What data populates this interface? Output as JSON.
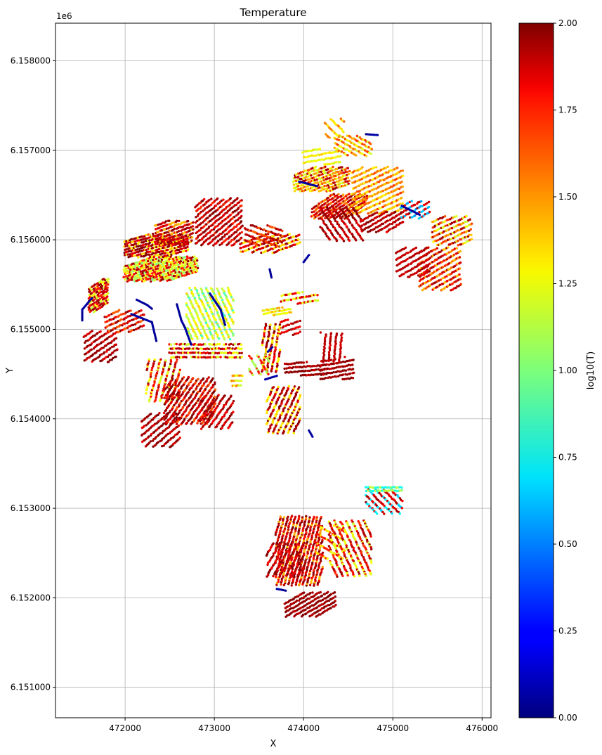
{
  "chart_data": {
    "type": "scatter",
    "title": "Temperature",
    "xlabel": "X",
    "ylabel": "Y",
    "y_offset_label": "1e6",
    "xlim": [
      471220,
      476100
    ],
    "ylim": [
      6150660,
      6158420
    ],
    "x_ticks": [
      472000,
      473000,
      474000,
      475000,
      476000
    ],
    "x_tick_labels": [
      "472000",
      "473000",
      "474000",
      "475000",
      "476000"
    ],
    "y_ticks": [
      6151000,
      6152000,
      6153000,
      6154000,
      6155000,
      6156000,
      6157000,
      6158000
    ],
    "y_tick_labels": [
      "6.151000",
      "6.152000",
      "6.153000",
      "6.154000",
      "6.155000",
      "6.156000",
      "6.157000",
      "6.158000"
    ],
    "grid": true,
    "colormap": "jet",
    "colorbar": {
      "label": "log10(T)",
      "range": [
        0.0,
        2.0
      ],
      "ticks": [
        0.0,
        0.25,
        0.5,
        0.75,
        1.0,
        1.25,
        1.5,
        1.75,
        2.0
      ],
      "tick_labels": [
        "0.00",
        "0.25",
        "0.50",
        "0.75",
        "1.00",
        "1.25",
        "1.50",
        "1.75",
        "2.00"
      ]
    },
    "point_groups": [
      {
        "x": [
          471600,
          471800
        ],
        "y": [
          6155200,
          6155550
        ],
        "rot": -35,
        "lines": 10,
        "c": [
          1.7,
          1.95,
          1.2,
          1.85
        ]
      },
      {
        "x": [
          471550,
          471900
        ],
        "y": [
          6154650,
          6154970
        ],
        "rot": -35,
        "lines": 8,
        "c": [
          1.9,
          1.8,
          2.0
        ]
      },
      {
        "x": [
          471780,
          472200
        ],
        "y": [
          6154980,
          6155200
        ],
        "rot": -25,
        "lines": 6,
        "c": [
          1.8,
          1.95,
          1.6
        ]
      },
      {
        "x": [
          472000,
          472800
        ],
        "y": [
          6155550,
          6155800
        ],
        "rot": -18,
        "lines": 12,
        "c": [
          1.2,
          1.05,
          1.7,
          1.3,
          1.9
        ]
      },
      {
        "x": [
          472000,
          472700
        ],
        "y": [
          6155820,
          6156050
        ],
        "rot": -15,
        "lines": 10,
        "c": [
          1.9,
          1.3,
          1.8,
          2.0
        ]
      },
      {
        "x": [
          472350,
          472750
        ],
        "y": [
          6155950,
          6156200
        ],
        "rot": -20,
        "lines": 9,
        "c": [
          1.95,
          1.8,
          1.4,
          1.9
        ]
      },
      {
        "x": [
          472800,
          473300
        ],
        "y": [
          6155950,
          6156450
        ],
        "rot": -40,
        "lines": 14,
        "c": [
          1.9,
          1.85,
          2.0,
          1.7
        ]
      },
      {
        "x": [
          473300,
          473950
        ],
        "y": [
          6155870,
          6156050
        ],
        "rot": -20,
        "lines": 6,
        "c": [
          1.8,
          1.3,
          1.9
        ]
      },
      {
        "x": [
          473350,
          473750
        ],
        "y": [
          6155950,
          6156150
        ],
        "rot": 20,
        "lines": 5,
        "c": [
          1.6,
          1.9
        ]
      },
      {
        "x": [
          472700,
          473200
        ],
        "y": [
          6154900,
          6155450
        ],
        "rot": 65,
        "lines": 12,
        "c": [
          1.1,
          1.3,
          0.9,
          1.2
        ]
      },
      {
        "x": [
          472500,
          473300
        ],
        "y": [
          6154700,
          6154820
        ],
        "rot": 0,
        "lines": 4,
        "c": [
          1.9,
          1.2,
          1.8
        ]
      },
      {
        "x": [
          472250,
          472600
        ],
        "y": [
          6154200,
          6154650
        ],
        "rot": -75,
        "lines": 8,
        "c": [
          1.7,
          1.2,
          1.9
        ]
      },
      {
        "x": [
          472450,
          473000
        ],
        "y": [
          6153950,
          6154450
        ],
        "rot": -55,
        "lines": 14,
        "c": [
          1.9,
          1.85,
          2.0,
          1.6
        ]
      },
      {
        "x": [
          472200,
          472600
        ],
        "y": [
          6153700,
          6154050
        ],
        "rot": -40,
        "lines": 8,
        "c": [
          1.9,
          1.8,
          2.0
        ]
      },
      {
        "x": [
          472850,
          473200
        ],
        "y": [
          6153900,
          6154250
        ],
        "rot": -55,
        "lines": 8,
        "c": [
          1.95,
          1.8
        ]
      },
      {
        "x": [
          473200,
          473300
        ],
        "y": [
          6154380,
          6154470
        ],
        "rot": 0,
        "lines": 3,
        "c": [
          1.2,
          1.5
        ]
      },
      {
        "x": [
          473550,
          473850
        ],
        "y": [
          6155170,
          6155230
        ],
        "rot": -10,
        "lines": 3,
        "c": [
          1.2,
          1.4
        ]
      },
      {
        "x": [
          473750,
          474150
        ],
        "y": [
          6155300,
          6155400
        ],
        "rot": -10,
        "lines": 3,
        "c": [
          1.2,
          1.8
        ]
      },
      {
        "x": [
          473750,
          473950
        ],
        "y": [
          6154950,
          6155100
        ],
        "rot": -20,
        "lines": 4,
        "c": [
          1.8,
          1.9
        ]
      },
      {
        "x": [
          473550,
          473720
        ],
        "y": [
          6154530,
          6155050
        ],
        "rot": -80,
        "lines": 5,
        "c": [
          1.8,
          1.95,
          1.3
        ]
      },
      {
        "x": [
          473400,
          473600
        ],
        "y": [
          6154500,
          6154700
        ],
        "rot": 60,
        "lines": 4,
        "c": [
          1.7,
          1.1
        ]
      },
      {
        "x": [
          473800,
          474250
        ],
        "y": [
          6154500,
          6154620
        ],
        "rot": -5,
        "lines": 4,
        "c": [
          1.9,
          2.0
        ]
      },
      {
        "x": [
          474200,
          474550
        ],
        "y": [
          6154450,
          6154650
        ],
        "rot": -10,
        "lines": 6,
        "c": [
          1.9,
          1.95,
          2.0
        ]
      },
      {
        "x": [
          474200,
          474450
        ],
        "y": [
          6154650,
          6154950
        ],
        "rot": -85,
        "lines": 6,
        "c": [
          1.9,
          1.85
        ]
      },
      {
        "x": [
          473600,
          473950
        ],
        "y": [
          6153850,
          6154350
        ],
        "rot": -65,
        "lines": 9,
        "c": [
          1.85,
          1.95,
          1.3
        ]
      },
      {
        "x": [
          473900,
          474500
        ],
        "y": [
          6156550,
          6156800
        ],
        "rot": -20,
        "lines": 10,
        "c": [
          1.2,
          1.4,
          1.9,
          1.6
        ]
      },
      {
        "x": [
          474100,
          474700
        ],
        "y": [
          6156250,
          6156500
        ],
        "rot": -35,
        "lines": 10,
        "c": [
          1.9,
          1.8,
          1.5
        ]
      },
      {
        "x": [
          474550,
          475100
        ],
        "y": [
          6156300,
          6156800
        ],
        "rot": -25,
        "lines": 12,
        "c": [
          1.5,
          1.4,
          1.3,
          1.6
        ]
      },
      {
        "x": [
          474000,
          474400
        ],
        "y": [
          6156850,
          6157000
        ],
        "rot": -10,
        "lines": 4,
        "c": [
          1.2,
          1.3
        ]
      },
      {
        "x": [
          474350,
          474750
        ],
        "y": [
          6156950,
          6157150
        ],
        "rot": 30,
        "lines": 6,
        "c": [
          1.4,
          1.6,
          1.2
        ]
      },
      {
        "x": [
          474250,
          474450
        ],
        "y": [
          6157150,
          6157350
        ],
        "rot": 45,
        "lines": 4,
        "c": [
          1.5,
          1.3
        ]
      },
      {
        "x": [
          474200,
          474650
        ],
        "y": [
          6156000,
          6156350
        ],
        "rot": 55,
        "lines": 8,
        "c": [
          1.9,
          1.8,
          2.0
        ]
      },
      {
        "x": [
          474650,
          475100
        ],
        "y": [
          6156100,
          6156300
        ],
        "rot": -30,
        "lines": 6,
        "c": [
          1.85,
          1.95
        ]
      },
      {
        "x": [
          475100,
          475400
        ],
        "y": [
          6156250,
          6156420
        ],
        "rot": -30,
        "lines": 5,
        "c": [
          0.6,
          1.9,
          1.8
        ]
      },
      {
        "x": [
          475300,
          475750
        ],
        "y": [
          6155450,
          6155900
        ],
        "rot": -30,
        "lines": 11,
        "c": [
          1.9,
          1.6,
          1.4,
          1.8
        ]
      },
      {
        "x": [
          475050,
          475400
        ],
        "y": [
          6155600,
          6155900
        ],
        "rot": -30,
        "lines": 7,
        "c": [
          1.9,
          1.85
        ]
      },
      {
        "x": [
          475450,
          475870
        ],
        "y": [
          6155950,
          6156250
        ],
        "rot": -25,
        "lines": 8,
        "c": [
          1.9,
          1.6,
          1.4,
          1.2
        ]
      },
      {
        "x": [
          473700,
          474200
        ],
        "y": [
          6152150,
          6152900
        ],
        "rot": -75,
        "lines": 16,
        "c": [
          1.9,
          1.85,
          2.0,
          1.7,
          1.4
        ]
      },
      {
        "x": [
          473600,
          474000
        ],
        "y": [
          6152250,
          6152600
        ],
        "rot": -60,
        "lines": 8,
        "c": [
          1.8,
          1.95
        ]
      },
      {
        "x": [
          474150,
          474450
        ],
        "y": [
          6152450,
          6152800
        ],
        "rot": 30,
        "lines": 5,
        "c": [
          1.3,
          1.7
        ]
      },
      {
        "x": [
          474300,
          474750
        ],
        "y": [
          6152250,
          6152850
        ],
        "rot": 65,
        "lines": 10,
        "c": [
          1.9,
          1.7,
          1.2
        ]
      },
      {
        "x": [
          473800,
          474350
        ],
        "y": [
          6151800,
          6152050
        ],
        "rot": -30,
        "lines": 8,
        "c": [
          1.9,
          1.95,
          2.0
        ]
      },
      {
        "x": [
          474700,
          475100
        ],
        "y": [
          6152950,
          6153200
        ],
        "rot": 45,
        "lines": 6,
        "c": [
          1.9,
          1.8,
          0.7
        ]
      },
      {
        "x": [
          474700,
          475100
        ],
        "y": [
          6153200,
          6153230
        ],
        "rot": 0,
        "lines": 2,
        "c": [
          0.8,
          1.1
        ]
      }
    ],
    "low_value_tracks": [
      [
        [
          472070,
          6155170
        ],
        [
          472300,
          6155080
        ],
        [
          472350,
          6154870
        ]
      ],
      [
        [
          472130,
          6155330
        ],
        [
          472250,
          6155270
        ],
        [
          472300,
          6155230
        ]
      ],
      [
        [
          471630,
          6155350
        ],
        [
          471520,
          6155220
        ],
        [
          471520,
          6155100
        ]
      ],
      [
        [
          472580,
          6155280
        ],
        [
          472630,
          6155100
        ],
        [
          472670,
          6155020
        ],
        [
          472740,
          6154830
        ]
      ],
      [
        [
          472950,
          6155400
        ],
        [
          473070,
          6155220
        ],
        [
          473120,
          6155050
        ]
      ],
      [
        [
          473620,
          6155670
        ],
        [
          473640,
          6155580
        ]
      ],
      [
        [
          474000,
          6155750
        ],
        [
          474060,
          6155830
        ]
      ],
      [
        [
          473700,
          6154480
        ],
        [
          473570,
          6154440
        ]
      ],
      [
        [
          473600,
          6154750
        ],
        [
          473650,
          6154800
        ]
      ],
      [
        [
          474060,
          6153870
        ],
        [
          474100,
          6153800
        ]
      ],
      [
        [
          473950,
          6156650
        ],
        [
          474070,
          6156620
        ],
        [
          474150,
          6156600
        ]
      ],
      [
        [
          474830,
          6157170
        ],
        [
          474700,
          6157180
        ]
      ],
      [
        [
          475100,
          6156380
        ],
        [
          475300,
          6156280
        ]
      ],
      [
        [
          473700,
          6152100
        ],
        [
          473800,
          6152080
        ]
      ]
    ]
  }
}
